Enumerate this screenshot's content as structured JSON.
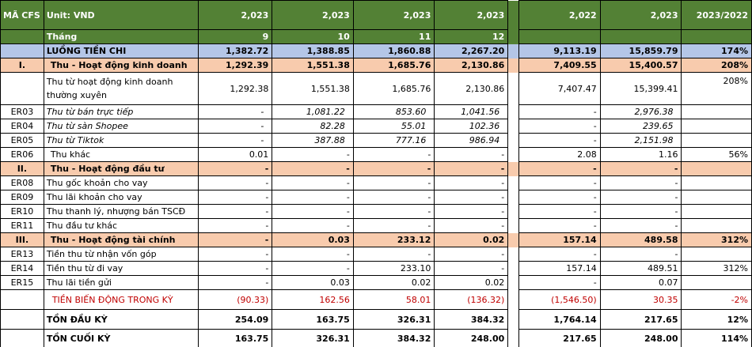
{
  "colors": {
    "header": "#538135",
    "summary_row": "#b4c6e7",
    "section_row": "#f8cbad",
    "negative_text": "#c00000"
  },
  "header": {
    "row1": [
      "MÃ CFS",
      "Unit: VND",
      "2,023",
      "2,023",
      "2,023",
      "2,023",
      "",
      "2,022",
      "2,023",
      "2023/2022"
    ],
    "row2": [
      "",
      "Tháng",
      "9",
      "10",
      "11",
      "12",
      "",
      "",
      "",
      ""
    ]
  },
  "rows": [
    {
      "type": "blue",
      "cells": [
        "",
        "LUỒNG TIỀN CHI",
        "1,382.72",
        "1,388.85",
        "1,860.88",
        "2,267.20",
        "",
        "9,113.19",
        "15,859.79",
        "174%"
      ]
    },
    {
      "type": "orange",
      "cells": [
        "I.",
        "Thu - Hoạt động kinh doanh",
        "1,292.39",
        "1,551.38",
        "1,685.76",
        "2,130.86",
        "",
        "7,409.55",
        "15,400.57",
        "208%"
      ]
    },
    {
      "type": "multi",
      "cells": [
        "",
        " Thu từ hoạt động kinh doanh thường xuyên",
        "1,292.38",
        "1,551.38",
        "1,685.76",
        "2,130.86",
        "",
        "7,407.47",
        "15,399.41",
        "208%"
      ]
    },
    {
      "type": "italic",
      "cells": [
        "ER03",
        "Thu từ bán trực tiếp",
        "-",
        "1,081.22",
        "853.60",
        "1,041.56",
        "",
        "-",
        "2,976.38",
        ""
      ]
    },
    {
      "type": "italic",
      "cells": [
        "ER04",
        "Thu từ sàn Shopee",
        "-",
        "82.28",
        "55.01",
        "102.36",
        "",
        "-",
        "239.65",
        ""
      ]
    },
    {
      "type": "italic",
      "cells": [
        "ER05",
        "Thu từ Tiktok",
        "-",
        "387.88",
        "777.16",
        "986.94",
        "",
        "-",
        "2,151.98",
        ""
      ]
    },
    {
      "type": "plain",
      "indent": true,
      "cells": [
        "ER06",
        "Thu khác",
        "0.01",
        "-",
        "-",
        "-",
        "",
        "2.08",
        "1.16",
        "56%"
      ]
    },
    {
      "type": "orange",
      "cells": [
        "II.",
        "Thu - Hoạt động đầu tư",
        "-",
        "-",
        "-",
        "-",
        "",
        "-",
        "-",
        ""
      ]
    },
    {
      "type": "plain",
      "cells": [
        "ER08",
        "Thu gốc khoản cho vay",
        "-",
        "-",
        "-",
        "-",
        "",
        "-",
        "-",
        ""
      ]
    },
    {
      "type": "plain",
      "cells": [
        "ER09",
        "Thu lãi khoản cho vay",
        "-",
        "-",
        "-",
        "-",
        "",
        "-",
        "-",
        ""
      ]
    },
    {
      "type": "plain",
      "cells": [
        "ER10",
        "Thu thanh lý, nhượng bán TSCĐ",
        "-",
        "-",
        "-",
        "-",
        "",
        "-",
        "-",
        ""
      ]
    },
    {
      "type": "plain",
      "cells": [
        "ER11",
        "Thu đầu tư khác",
        "-",
        "-",
        "-",
        "-",
        "",
        "-",
        "-",
        ""
      ]
    },
    {
      "type": "orange",
      "cells": [
        "III.",
        "Thu - Hoạt động tài chính",
        "-",
        "0.03",
        "233.12",
        "0.02",
        "",
        "157.14",
        "489.58",
        "312%"
      ]
    },
    {
      "type": "plain",
      "cells": [
        "ER13",
        "Tiền thu từ nhận vốn góp",
        "-",
        "-",
        "-",
        "-",
        "",
        "-",
        "-",
        ""
      ]
    },
    {
      "type": "plain",
      "cells": [
        "ER14",
        "Tiền thu từ đi vay",
        "-",
        "-",
        "233.10",
        "-",
        "",
        "157.14",
        "489.51",
        "312%"
      ]
    },
    {
      "type": "plain",
      "cells": [
        "ER15",
        "Thu lãi tiền gửi",
        "-",
        "0.03",
        "0.02",
        "0.02",
        "",
        "-",
        "0.07",
        ""
      ]
    },
    {
      "type": "tbd",
      "cells": [
        "",
        "TIỀN BIẾN ĐỘNG TRONG KỲ",
        "(90.33)",
        "162.56",
        "58.01",
        "(136.32)",
        "",
        "(1,546.50)",
        "30.35",
        "-2%"
      ]
    },
    {
      "type": "total",
      "cells": [
        "",
        "TỒN ĐẦU KỲ",
        "254.09",
        "163.75",
        "326.31",
        "384.32",
        "",
        "1,764.14",
        "217.65",
        "12%"
      ]
    },
    {
      "type": "total",
      "cells": [
        "",
        "TỒN CUỐI KỲ",
        "163.75",
        "326.31",
        "384.32",
        "248.00",
        "",
        "217.65",
        "248.00",
        "114%"
      ]
    }
  ]
}
